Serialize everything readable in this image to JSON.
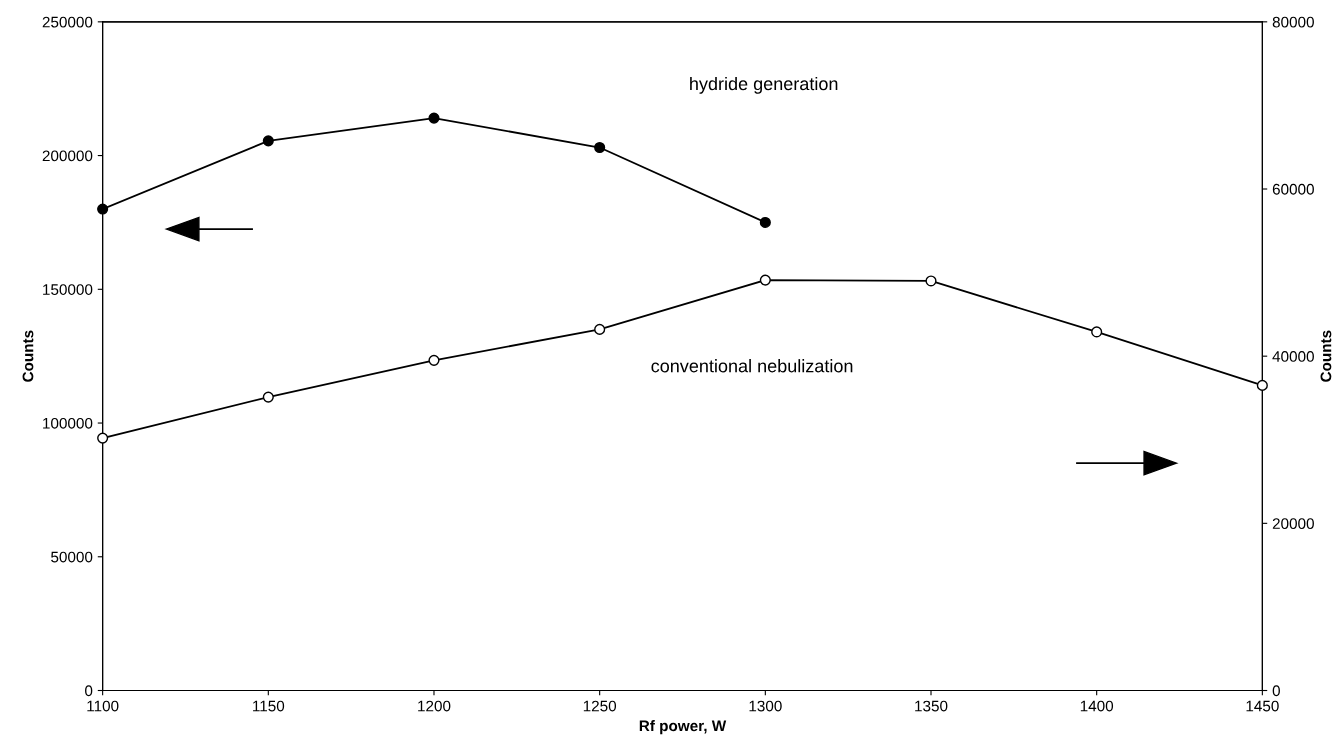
{
  "chart_data": {
    "type": "line",
    "xlabel": "Rf power, W",
    "ylabel": "Counts",
    "y2label": "Counts",
    "x": [
      1100,
      1150,
      1200,
      1250,
      1300,
      1350,
      1400,
      1450
    ],
    "series": [
      {
        "color": "#000000",
        "marker": "circle",
        "axis": "y",
        "values": [
          180000,
          205500,
          214000,
          203000,
          175000,
          null,
          null,
          null
        ]
      },
      {
        "color": "#000000",
        "marker": "circle",
        "axis": "y2",
        "values": [
          30200,
          35100,
          39500,
          43200,
          49100,
          49000,
          42900,
          36500
        ]
      }
    ],
    "xlim": [
      1100,
      1450
    ],
    "xticks": [
      1100,
      1150,
      1200,
      1250,
      1300,
      1350,
      1400,
      1450
    ],
    "ylim": [
      0,
      250000
    ],
    "yticks": [
      0,
      50000,
      100000,
      150000,
      200000,
      250000
    ],
    "y2lim": [
      0,
      80000
    ],
    "y2ticks": [
      0,
      20000,
      40000,
      60000,
      80000
    ],
    "annotations": [
      "hydride generation",
      "conventional nebulization"
    ],
    "grid": false,
    "line_style": "solid"
  }
}
